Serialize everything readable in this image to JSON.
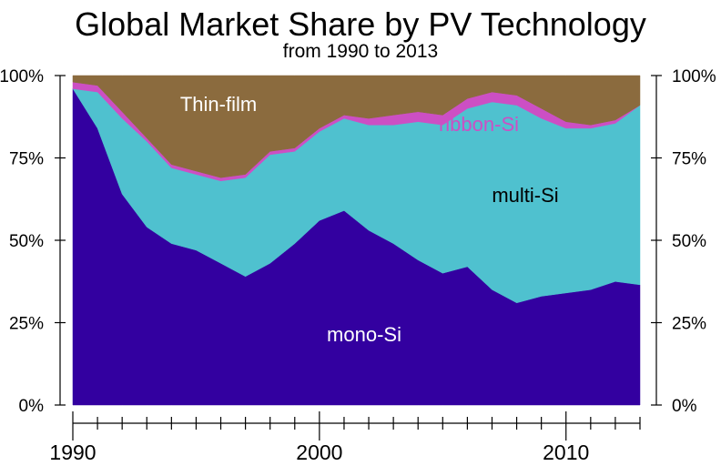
{
  "chart_data": {
    "type": "area",
    "stacked": true,
    "percent": true,
    "title": "Global Market Share by PV Technology",
    "subtitle": "from 1990 to 2013",
    "xlabel": "",
    "ylabel": "",
    "x": [
      1990,
      1991,
      1992,
      1993,
      1994,
      1995,
      1996,
      1997,
      1998,
      1999,
      2000,
      2001,
      2002,
      2003,
      2004,
      2005,
      2006,
      2007,
      2008,
      2009,
      2010,
      2011,
      2012,
      2013
    ],
    "series": [
      {
        "name": "mono-Si",
        "color": "#3300a0",
        "values": [
          96,
          84,
          64,
          54,
          49,
          47,
          43,
          39,
          43,
          49,
          56,
          59,
          53,
          49,
          44,
          40,
          42,
          35,
          31,
          33,
          34,
          35,
          37.5,
          36.5
        ]
      },
      {
        "name": "multi-Si",
        "color": "#4fc1cf",
        "values": [
          0,
          11,
          23,
          26,
          23,
          23,
          25,
          30,
          33,
          28,
          27,
          28,
          32,
          36,
          42,
          45,
          48,
          57,
          60,
          54,
          50,
          49,
          48,
          54.5
        ]
      },
      {
        "name": "ribbon-Si",
        "color": "#cc4fc4",
        "values": [
          2,
          2,
          2,
          1,
          1,
          1,
          1,
          1,
          1,
          1,
          1,
          1,
          2,
          3,
          3,
          3,
          3,
          3,
          3,
          3,
          2,
          1,
          1,
          0
        ]
      },
      {
        "name": "Thin-film",
        "color": "#8b6b3e",
        "values": [
          2,
          3,
          11,
          19,
          27,
          29,
          31,
          30,
          23,
          22,
          16,
          12,
          13,
          12,
          11,
          12,
          7,
          5,
          6,
          10,
          14,
          15,
          13.5,
          9
        ]
      }
    ],
    "xlim": [
      1990,
      2013
    ],
    "ylim": [
      0,
      100
    ],
    "y_ticks": [
      "0%",
      "25%",
      "50%",
      "75%",
      "100%"
    ],
    "x_major_ticks": [
      1990,
      2000,
      2010
    ],
    "x_tick_labels": [
      "1990",
      "2000",
      "2010"
    ],
    "series_labels": [
      {
        "text": "Thin-film",
        "color": "#ffffff"
      },
      {
        "text": "ribbon-Si",
        "color": "#cc4fc4"
      },
      {
        "text": "multi-Si",
        "color": "#000000"
      },
      {
        "text": "mono-Si",
        "color": "#ffffff"
      }
    ]
  }
}
